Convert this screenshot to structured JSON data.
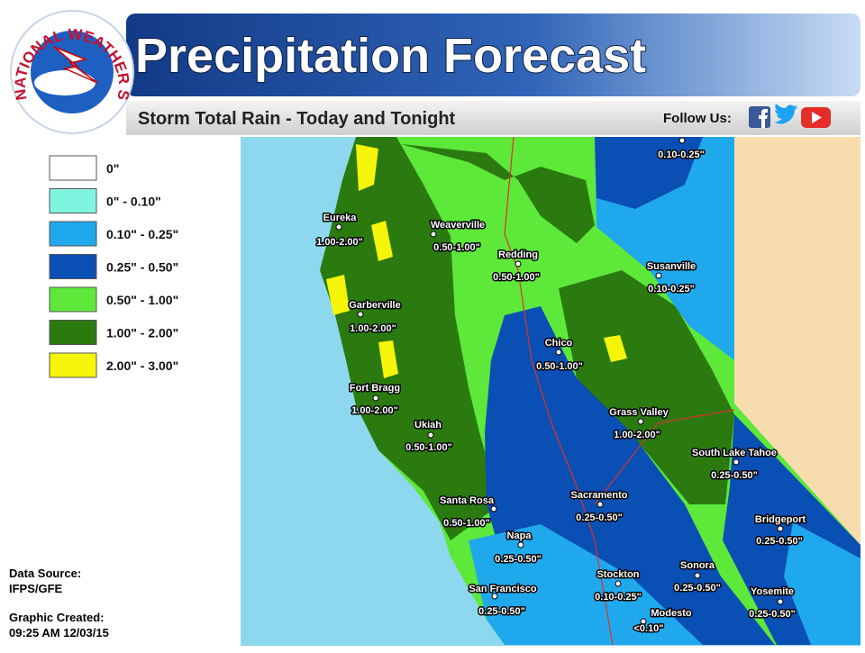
{
  "header": {
    "logo_text": "NATIONAL WEATHER SERVICE",
    "title": "Precipitation Forecast",
    "subtitle": "Storm Total Rain - Today and Tonight",
    "follow_us": "Follow Us:"
  },
  "legend": [
    {
      "label": "0\"",
      "color": "#ffffff"
    },
    {
      "label": "0\" - 0.10\"",
      "color": "#7ff5e0"
    },
    {
      "label": "0.10\" - 0.25\"",
      "color": "#1fa8ec"
    },
    {
      "label": "0.25\" - 0.50\"",
      "color": "#0a4fb3"
    },
    {
      "label": "0.50\" - 1.00\"",
      "color": "#5de83a"
    },
    {
      "label": "1.00\" - 2.00\"",
      "color": "#2b7a10"
    },
    {
      "label": "2.00\" - 3.00\"",
      "color": "#f5f50a"
    }
  ],
  "cities": [
    {
      "amount": "0.10-0.25\""
    },
    {
      "name": "Eureka",
      "amount": "1.00-2.00\""
    },
    {
      "name": "Weaverville",
      "amount": "0.50-1.00\""
    },
    {
      "name": "Redding",
      "amount": "0.50-1.00\""
    },
    {
      "name": "Susanville",
      "amount": "0.10-0.25\""
    },
    {
      "name": "Garberville",
      "amount": "1.00-2.00\""
    },
    {
      "name": "Chico",
      "amount": "0.50-1.00\""
    },
    {
      "name": "Fort Bragg",
      "amount": "1.00-2.00\""
    },
    {
      "name": "Grass Valley",
      "amount": "1.00-2.00\""
    },
    {
      "name": "Ukiah",
      "amount": "0.50-1.00\""
    },
    {
      "name": "South Lake Tahoe",
      "amount": "0.25-0.50\""
    },
    {
      "name": "Santa Rosa",
      "amount": "0.50-1.00\""
    },
    {
      "name": "Sacramento",
      "amount": "0.25-0.50\""
    },
    {
      "name": "Bridgeport",
      "amount": "0.25-0.50\""
    },
    {
      "name": "Napa",
      "amount": "0.25-0.50\""
    },
    {
      "name": "Stockton",
      "amount": "0.10-0.25\""
    },
    {
      "name": "Sonora",
      "amount": "0.25-0.50\""
    },
    {
      "name": "Yosemite",
      "amount": "0.25-0.50\""
    },
    {
      "name": "San Francisco",
      "amount": "0.25-0.50\""
    },
    {
      "name": "Modesto",
      "amount": "<0.10\""
    }
  ],
  "footer": {
    "source_label": "Data Source:",
    "source": "IFPS/GFE",
    "created_label": "Graphic Created:",
    "created": "09:25 AM 12/03/15"
  }
}
